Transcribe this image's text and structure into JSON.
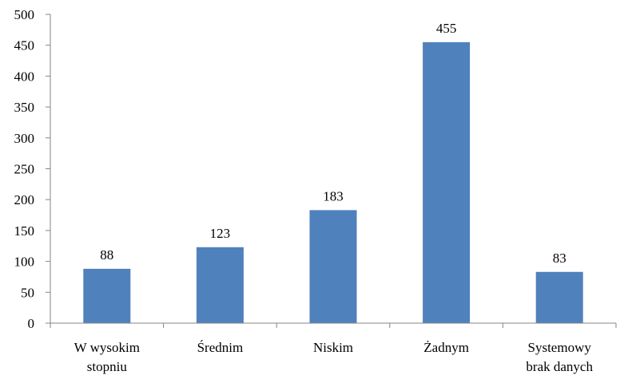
{
  "chart_data": {
    "type": "bar",
    "title": "",
    "xlabel": "",
    "ylabel": "",
    "categories": [
      [
        "W wysokim",
        "stopniu"
      ],
      [
        "Średnim"
      ],
      [
        "Niskim"
      ],
      [
        "Żadnym"
      ],
      [
        "Systemowy",
        "brak danych"
      ]
    ],
    "values": [
      88,
      123,
      183,
      455,
      83
    ],
    "data_labels": [
      "88",
      "123",
      "183",
      "455",
      "83"
    ],
    "ylim": [
      0,
      500
    ],
    "yticks": [
      "0",
      "50",
      "100",
      "150",
      "200",
      "250",
      "300",
      "350",
      "400",
      "450",
      "500"
    ],
    "grid": false,
    "legend": "none",
    "bar_color": "#4F81BD",
    "axis_color": "#868686"
  }
}
